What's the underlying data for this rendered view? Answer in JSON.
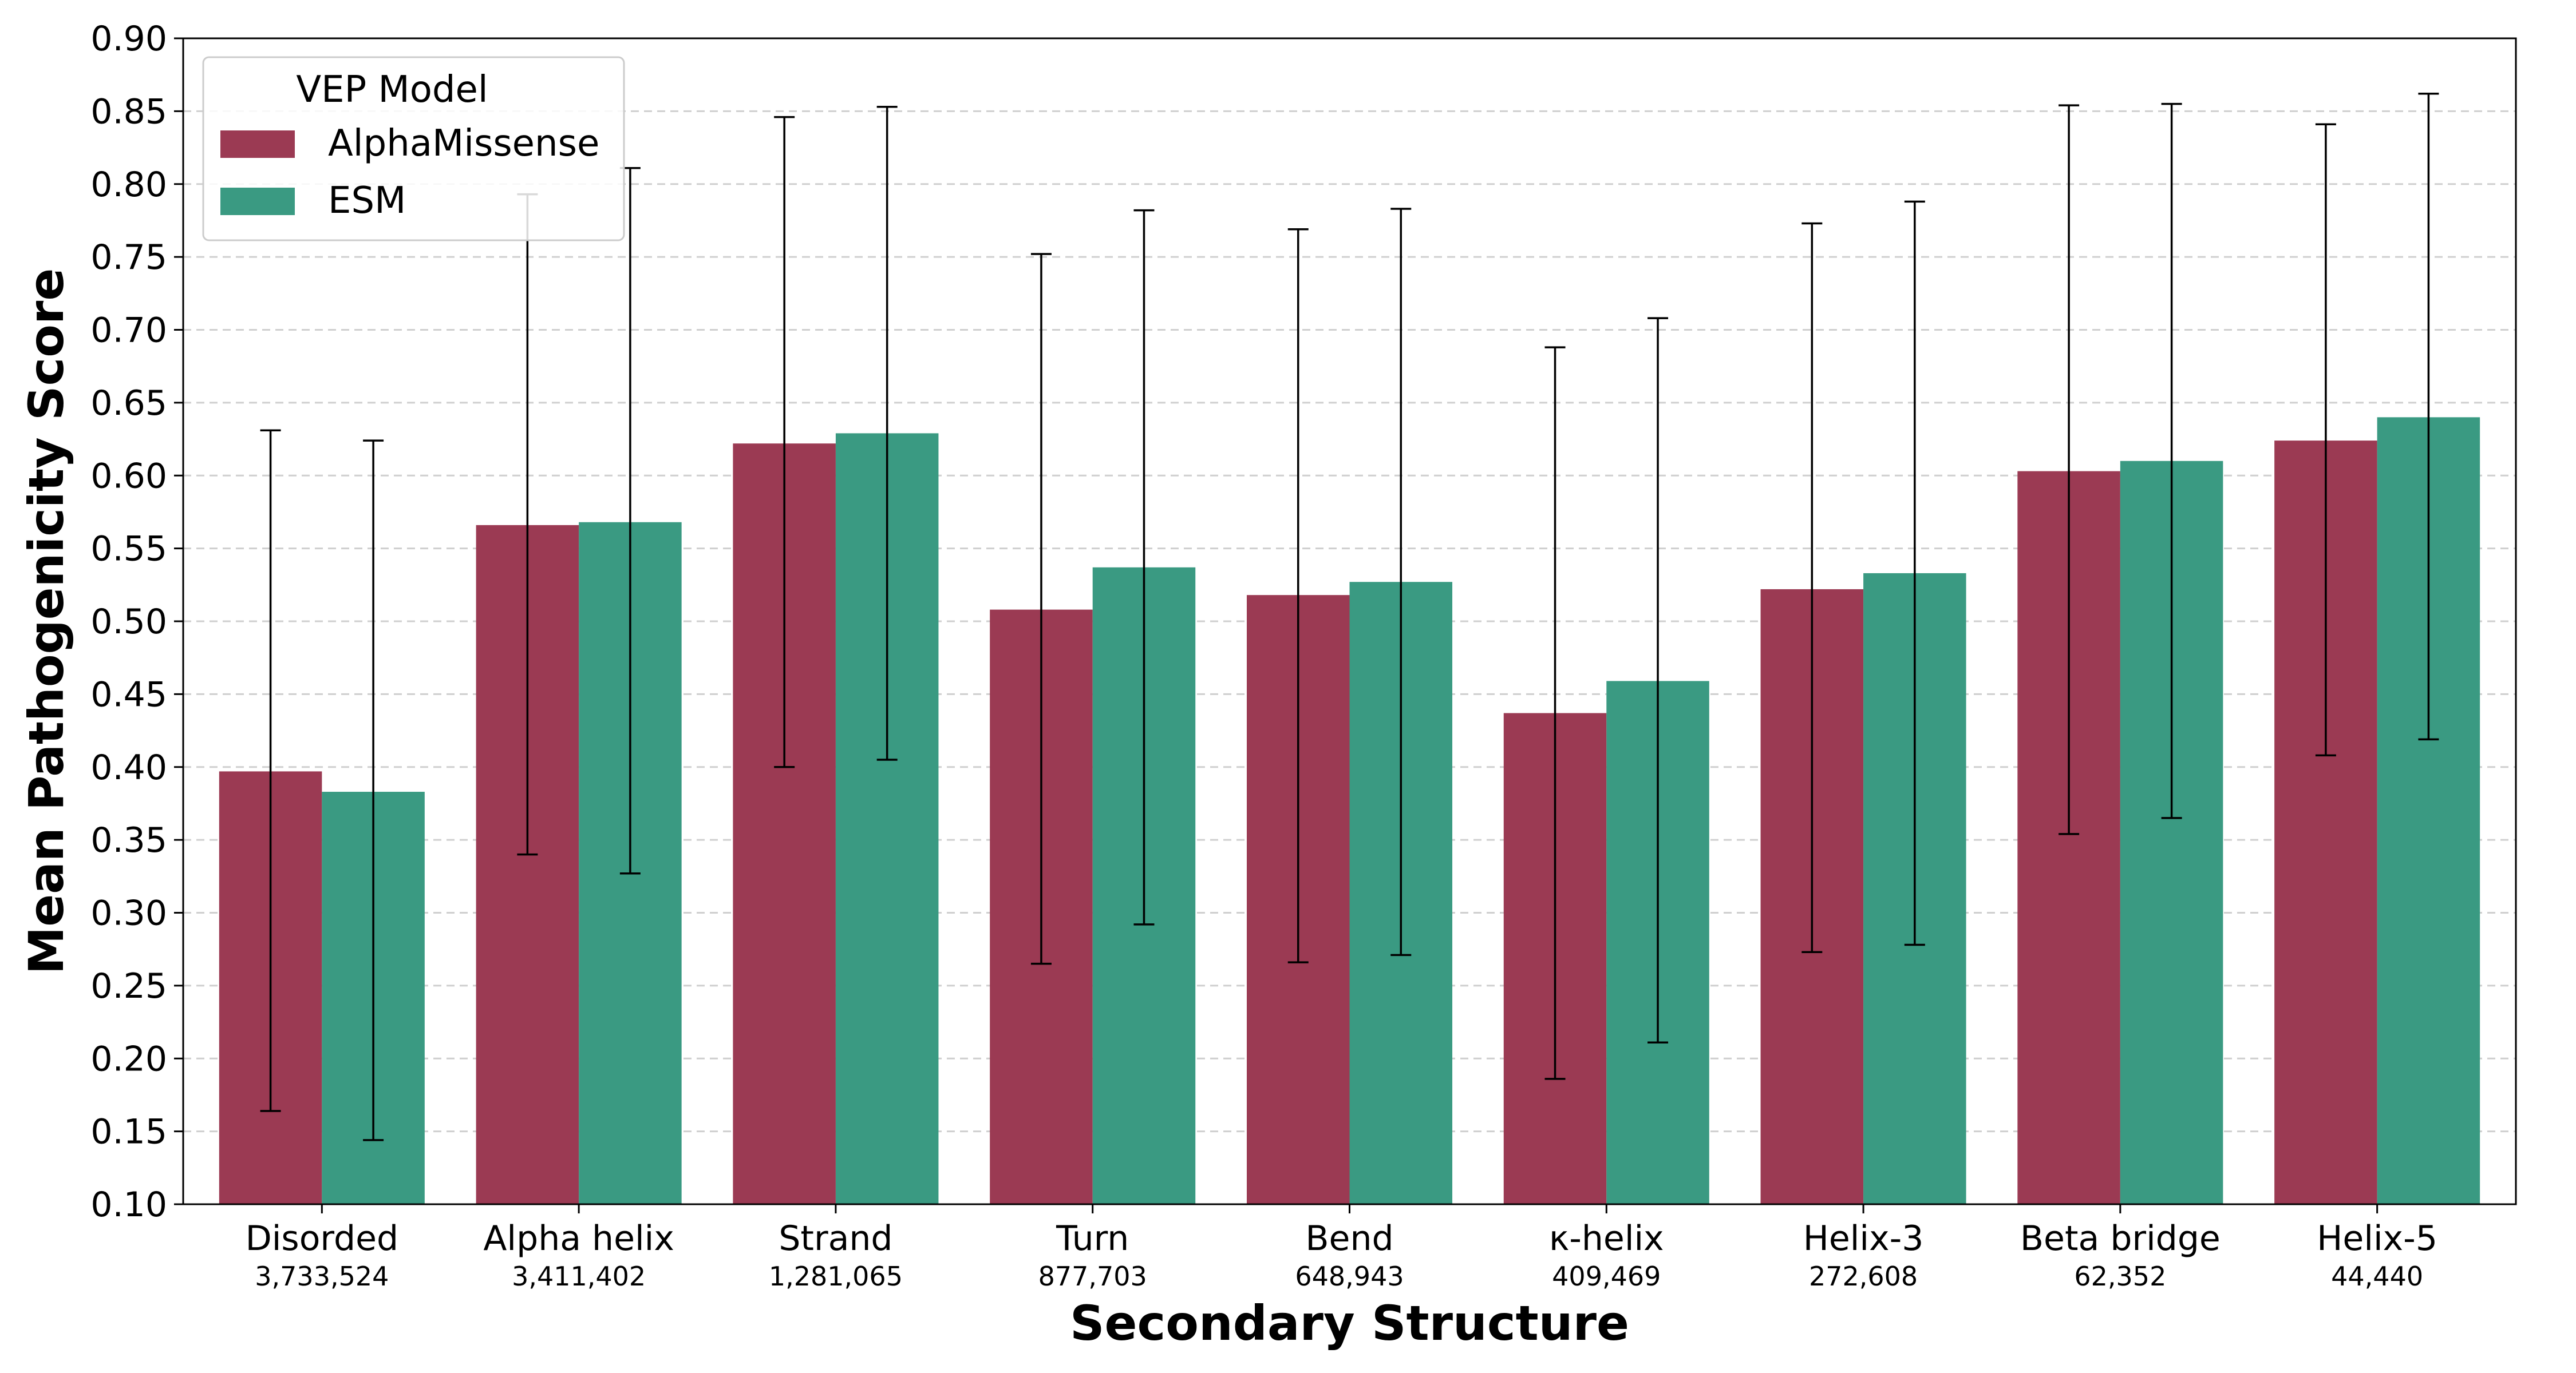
{
  "chart_data": {
    "type": "bar",
    "xlabel": "Secondary Structure",
    "ylabel": "Mean Pathogenicity Score",
    "ylim": [
      0.1,
      0.9
    ],
    "yticks": [
      "0.10",
      "0.15",
      "0.20",
      "0.25",
      "0.30",
      "0.35",
      "0.40",
      "0.45",
      "0.50",
      "0.55",
      "0.60",
      "0.65",
      "0.70",
      "0.75",
      "0.80",
      "0.85",
      "0.90"
    ],
    "grid": "horizontal dashed",
    "legend": {
      "title": "VEP Model",
      "placement": "top-left"
    },
    "categories": [
      "Disorded",
      "Alpha helix",
      "Strand",
      "Turn",
      "Bend",
      "κ-helix",
      "Helix-3",
      "Beta bridge",
      "Helix-5"
    ],
    "counts": [
      "3,733,524",
      "3,411,402",
      "1,281,065",
      "877,703",
      "648,943",
      "409,469",
      "272,608",
      "62,352",
      "44,440"
    ],
    "series": [
      {
        "name": "AlphaMissense",
        "color": "#9b3a53",
        "values": [
          0.397,
          0.566,
          0.622,
          0.508,
          0.518,
          0.437,
          0.522,
          0.603,
          0.624
        ],
        "err_low": [
          0.164,
          0.34,
          0.4,
          0.265,
          0.266,
          0.186,
          0.273,
          0.354,
          0.408
        ],
        "err_high": [
          0.631,
          0.793,
          0.846,
          0.752,
          0.769,
          0.688,
          0.773,
          0.854,
          0.841
        ]
      },
      {
        "name": "ESM",
        "color": "#3a9a82",
        "values": [
          0.383,
          0.568,
          0.629,
          0.537,
          0.527,
          0.459,
          0.533,
          0.61,
          0.64
        ],
        "err_low": [
          0.144,
          0.327,
          0.405,
          0.292,
          0.271,
          0.211,
          0.278,
          0.365,
          0.419
        ],
        "err_high": [
          0.624,
          0.811,
          0.853,
          0.782,
          0.783,
          0.708,
          0.788,
          0.855,
          0.862
        ]
      }
    ]
  }
}
